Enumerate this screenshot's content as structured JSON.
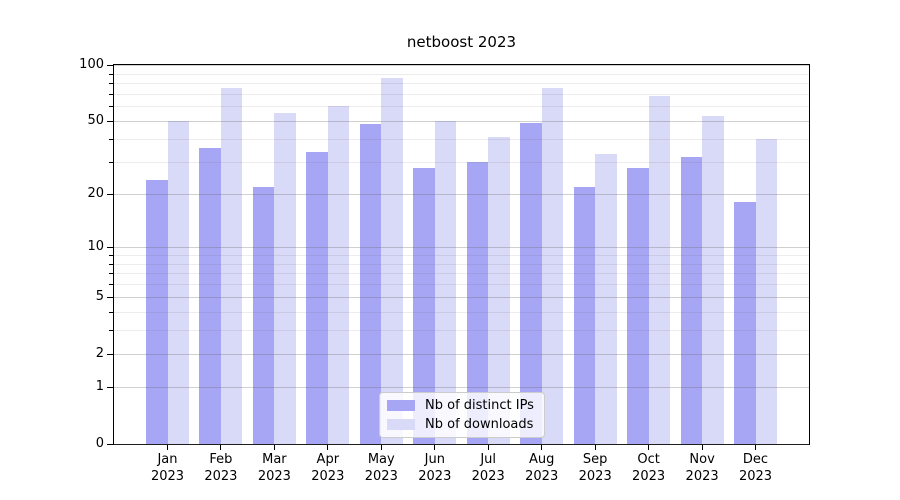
{
  "chart_data": {
    "type": "bar",
    "title": "netboost 2023",
    "categories": [
      "Jan 2023",
      "Feb 2023",
      "Mar 2023",
      "Apr 2023",
      "May 2023",
      "Jun 2023",
      "Jul 2023",
      "Aug 2023",
      "Sep 2023",
      "Oct 2023",
      "Nov 2023",
      "Dec 2023"
    ],
    "series": [
      {
        "name": "Nb of distinct IPs",
        "color": "#a6a6f5",
        "values": [
          24,
          36,
          22,
          34,
          48,
          28,
          30,
          49,
          22,
          28,
          32,
          18
        ]
      },
      {
        "name": "Nb of downloads",
        "color": "#d9d9f8",
        "values": [
          50,
          75,
          55,
          60,
          85,
          50,
          41,
          75,
          33,
          68,
          53,
          40
        ]
      }
    ],
    "xlabel": "",
    "ylabel": "",
    "yscale": "log1p",
    "ylim": [
      0,
      100
    ],
    "yticks_major": [
      0,
      1,
      2,
      5,
      10,
      20,
      50,
      100
    ],
    "yticks_minor": [
      3,
      4,
      6,
      7,
      8,
      9,
      30,
      40,
      60,
      70,
      80,
      90
    ],
    "grid": true,
    "legend_position": "lower center"
  }
}
